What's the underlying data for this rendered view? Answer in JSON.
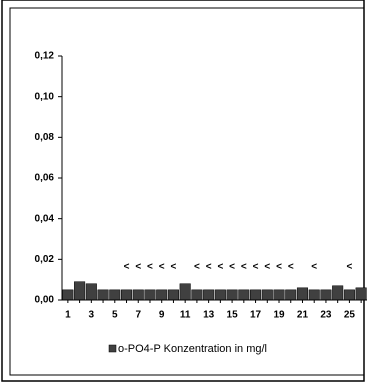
{
  "chart_data": {
    "type": "bar",
    "categories": [
      "1",
      null,
      "3",
      null,
      "5",
      null,
      "7",
      null,
      "9",
      null,
      "11",
      null,
      "13",
      null,
      "15",
      null,
      "17",
      null,
      "19",
      null,
      "21",
      null,
      "23",
      null,
      "25",
      null
    ],
    "series": [
      {
        "name": "o-PO4-P Konzentration in mg/l",
        "color": "#404040",
        "values": [
          0.005,
          0.009,
          0.008,
          0.005,
          0.005,
          0.005,
          0.005,
          0.005,
          0.005,
          0.005,
          0.008,
          0.005,
          0.005,
          0.005,
          0.005,
          0.005,
          0.005,
          0.005,
          0.005,
          0.005,
          0.006,
          0.005,
          0.005,
          0.007,
          0.005,
          0.006
        ]
      }
    ],
    "markers": [
      null,
      null,
      null,
      null,
      null,
      "<",
      "<",
      "<",
      "<",
      "<",
      null,
      "<",
      "<",
      "<",
      "<",
      "<",
      "<",
      "<",
      "<",
      "<",
      null,
      "<",
      null,
      null,
      "<",
      null
    ],
    "ylim": [
      0,
      0.12
    ],
    "yticks": [
      {
        "value": 0,
        "label": "0,00"
      },
      {
        "value": 0.02,
        "label": "0,02"
      },
      {
        "value": 0.04,
        "label": "0,04"
      },
      {
        "value": 0.06,
        "label": "0,06"
      },
      {
        "value": 0.08,
        "label": "0,08"
      },
      {
        "value": 0.1,
        "label": "0,10"
      },
      {
        "value": 0.12,
        "label": "0,12"
      }
    ],
    "legend": "bottom"
  }
}
